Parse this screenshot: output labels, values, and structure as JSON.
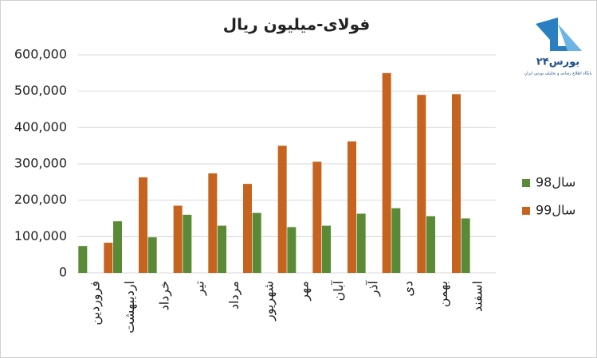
{
  "chart_data": {
    "type": "bar",
    "title": "فولای-میلیون ریال",
    "categories": [
      "فروردین",
      "اردیبهشت",
      "خرداد",
      "تیر",
      "مرداد",
      "شهریور",
      "مهر",
      "آبان",
      "آذر",
      "دی",
      "بهمن",
      "اسفند"
    ],
    "series": [
      {
        "name": "سال98",
        "color": "#5a8a35",
        "values": [
          74000,
          142000,
          98000,
          160000,
          130000,
          165000,
          126000,
          130000,
          163000,
          178000,
          156000,
          150000
        ]
      },
      {
        "name": "سال99",
        "color": "#c5631f",
        "values": [
          83000,
          263000,
          185000,
          274000,
          245000,
          350000,
          306000,
          362000,
          550000,
          490000,
          492000,
          null
        ]
      }
    ],
    "ylim": [
      0,
      600000
    ],
    "yticks": [
      {
        "value": 0,
        "label": "0"
      },
      {
        "value": 100000,
        "label": "100,000"
      },
      {
        "value": 200000,
        "label": "200,000"
      },
      {
        "value": 300000,
        "label": "300,000"
      },
      {
        "value": 400000,
        "label": "400,000"
      },
      {
        "value": 500000,
        "label": "500,000"
      },
      {
        "value": 600000,
        "label": "600,000"
      }
    ],
    "grid": true,
    "legend": "right"
  },
  "logo": {
    "text": "بورس۲۴",
    "subtitle": "پایگاه اطلاع رسانی و تحلیلی بورس ایران"
  }
}
